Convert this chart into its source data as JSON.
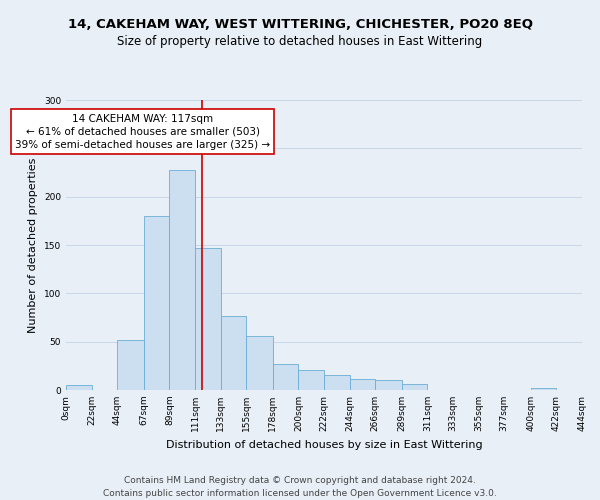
{
  "title": "14, CAKEHAM WAY, WEST WITTERING, CHICHESTER, PO20 8EQ",
  "subtitle": "Size of property relative to detached houses in East Wittering",
  "xlabel": "Distribution of detached houses by size in East Wittering",
  "ylabel": "Number of detached properties",
  "bin_edges": [
    0,
    22,
    44,
    67,
    89,
    111,
    133,
    155,
    178,
    200,
    222,
    244,
    266,
    289,
    311,
    333,
    355,
    377,
    400,
    422,
    444
  ],
  "bar_heights": [
    5,
    0,
    52,
    180,
    228,
    147,
    77,
    56,
    27,
    21,
    16,
    11,
    10,
    6,
    0,
    0,
    0,
    0,
    2,
    0
  ],
  "bar_color": "#ccdff0",
  "bar_edge_color": "#6aaed6",
  "reference_line_x": 117,
  "reference_line_color": "#cc0000",
  "annotation_title": "14 CAKEHAM WAY: 117sqm",
  "annotation_line1": "← 61% of detached houses are smaller (503)",
  "annotation_line2": "39% of semi-detached houses are larger (325) →",
  "annotation_box_color": "#ffffff",
  "annotation_box_edge_color": "#cc0000",
  "ylim": [
    0,
    300
  ],
  "yticks": [
    0,
    50,
    100,
    150,
    200,
    250,
    300
  ],
  "tick_labels": [
    "0sqm",
    "22sqm",
    "44sqm",
    "67sqm",
    "89sqm",
    "111sqm",
    "133sqm",
    "155sqm",
    "178sqm",
    "200sqm",
    "222sqm",
    "244sqm",
    "266sqm",
    "289sqm",
    "311sqm",
    "333sqm",
    "355sqm",
    "377sqm",
    "400sqm",
    "422sqm",
    "444sqm"
  ],
  "footer1": "Contains HM Land Registry data © Crown copyright and database right 2024.",
  "footer2": "Contains public sector information licensed under the Open Government Licence v3.0.",
  "grid_color": "#c8d8e8",
  "background_color": "#e8eff7",
  "title_fontsize": 9.5,
  "subtitle_fontsize": 8.5,
  "axis_label_fontsize": 8,
  "tick_fontsize": 6.5,
  "annotation_fontsize": 7.5,
  "footer_fontsize": 6.5
}
